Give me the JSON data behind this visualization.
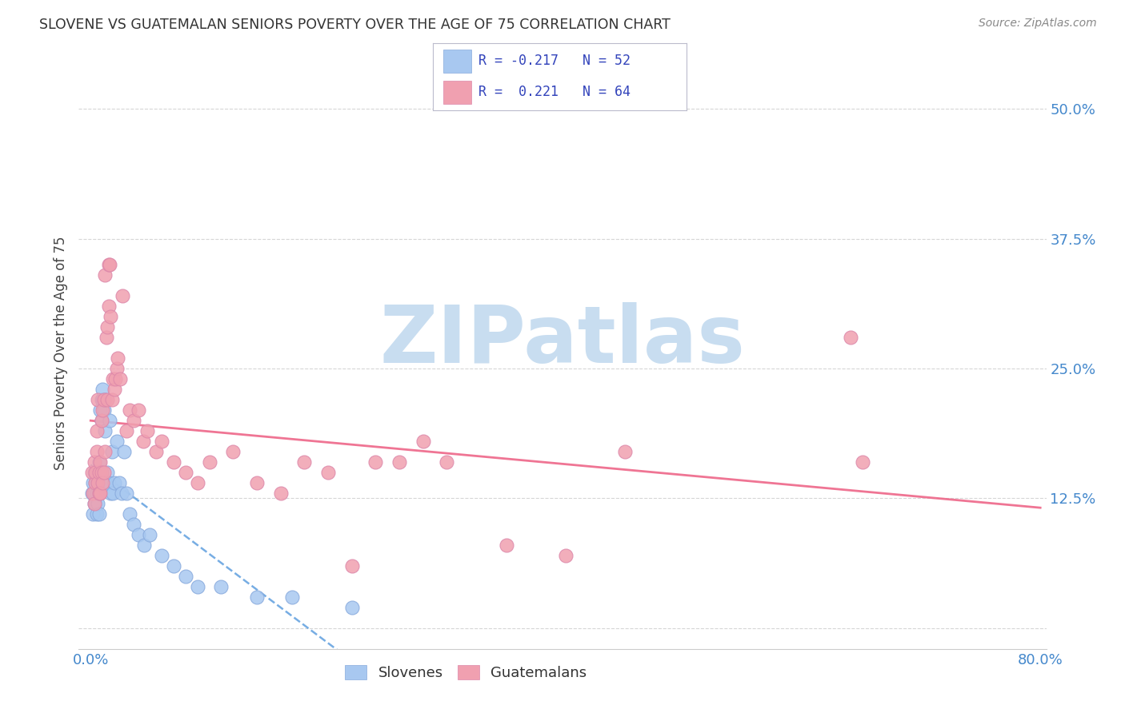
{
  "title": "SLOVENE VS GUATEMALAN SENIORS POVERTY OVER THE AGE OF 75 CORRELATION CHART",
  "source": "Source: ZipAtlas.com",
  "ylabel": "Seniors Poverty Over the Age of 75",
  "xlabel": "",
  "xlim": [
    0.0,
    0.8
  ],
  "ylim": [
    -0.02,
    0.55
  ],
  "xticks": [
    0.0,
    0.1,
    0.2,
    0.3,
    0.4,
    0.5,
    0.6,
    0.7,
    0.8
  ],
  "xticklabels": [
    "0.0%",
    "",
    "",
    "",
    "",
    "",
    "",
    "",
    "80.0%"
  ],
  "ytick_positions": [
    0.0,
    0.125,
    0.25,
    0.375,
    0.5
  ],
  "yticklabels": [
    "",
    "12.5%",
    "25.0%",
    "37.5%",
    "50.0%"
  ],
  "background_color": "#ffffff",
  "grid_color": "#cccccc",
  "title_color": "#333333",
  "source_color": "#888888",
  "slovene_color": "#a8c8f0",
  "guatemalan_color": "#f0a0b0",
  "slovene_line_color": "#5599dd",
  "guatemalan_line_color": "#ee6688",
  "legend_R_color": "#3344bb",
  "slovene_R": -0.217,
  "slovene_N": 52,
  "guatemalan_R": 0.221,
  "guatemalan_N": 64,
  "slovene_x": [
    0.001,
    0.002,
    0.002,
    0.003,
    0.003,
    0.003,
    0.004,
    0.004,
    0.005,
    0.005,
    0.005,
    0.006,
    0.006,
    0.007,
    0.007,
    0.007,
    0.008,
    0.008,
    0.009,
    0.009,
    0.01,
    0.01,
    0.011,
    0.011,
    0.012,
    0.012,
    0.013,
    0.014,
    0.015,
    0.016,
    0.017,
    0.018,
    0.019,
    0.02,
    0.022,
    0.024,
    0.026,
    0.028,
    0.03,
    0.033,
    0.036,
    0.04,
    0.045,
    0.05,
    0.06,
    0.07,
    0.08,
    0.09,
    0.11,
    0.14,
    0.17,
    0.22
  ],
  "slovene_y": [
    0.13,
    0.11,
    0.14,
    0.12,
    0.13,
    0.15,
    0.12,
    0.14,
    0.11,
    0.13,
    0.15,
    0.12,
    0.14,
    0.11,
    0.13,
    0.16,
    0.13,
    0.21,
    0.22,
    0.2,
    0.22,
    0.23,
    0.21,
    0.14,
    0.22,
    0.19,
    0.14,
    0.15,
    0.14,
    0.2,
    0.13,
    0.17,
    0.13,
    0.14,
    0.18,
    0.14,
    0.13,
    0.17,
    0.13,
    0.11,
    0.1,
    0.09,
    0.08,
    0.09,
    0.07,
    0.06,
    0.05,
    0.04,
    0.04,
    0.03,
    0.03,
    0.02
  ],
  "guatemalan_x": [
    0.001,
    0.002,
    0.003,
    0.003,
    0.004,
    0.004,
    0.005,
    0.005,
    0.006,
    0.006,
    0.007,
    0.007,
    0.008,
    0.008,
    0.009,
    0.009,
    0.01,
    0.01,
    0.011,
    0.011,
    0.012,
    0.012,
    0.013,
    0.014,
    0.014,
    0.015,
    0.015,
    0.016,
    0.017,
    0.018,
    0.019,
    0.02,
    0.021,
    0.022,
    0.023,
    0.025,
    0.027,
    0.03,
    0.033,
    0.036,
    0.04,
    0.044,
    0.048,
    0.055,
    0.06,
    0.07,
    0.08,
    0.09,
    0.1,
    0.12,
    0.14,
    0.16,
    0.18,
    0.2,
    0.22,
    0.24,
    0.26,
    0.28,
    0.3,
    0.35,
    0.4,
    0.45,
    0.64,
    0.65
  ],
  "guatemalan_y": [
    0.15,
    0.13,
    0.12,
    0.16,
    0.14,
    0.15,
    0.17,
    0.19,
    0.22,
    0.14,
    0.15,
    0.13,
    0.13,
    0.16,
    0.15,
    0.2,
    0.14,
    0.21,
    0.22,
    0.15,
    0.17,
    0.34,
    0.28,
    0.29,
    0.22,
    0.31,
    0.35,
    0.35,
    0.3,
    0.22,
    0.24,
    0.23,
    0.24,
    0.25,
    0.26,
    0.24,
    0.32,
    0.19,
    0.21,
    0.2,
    0.21,
    0.18,
    0.19,
    0.17,
    0.18,
    0.16,
    0.15,
    0.14,
    0.16,
    0.17,
    0.14,
    0.13,
    0.16,
    0.15,
    0.06,
    0.16,
    0.16,
    0.18,
    0.16,
    0.08,
    0.07,
    0.17,
    0.28,
    0.16
  ],
  "watermark": "ZIPatlas",
  "watermark_color": "#c8ddf0",
  "watermark_fontsize": 72
}
